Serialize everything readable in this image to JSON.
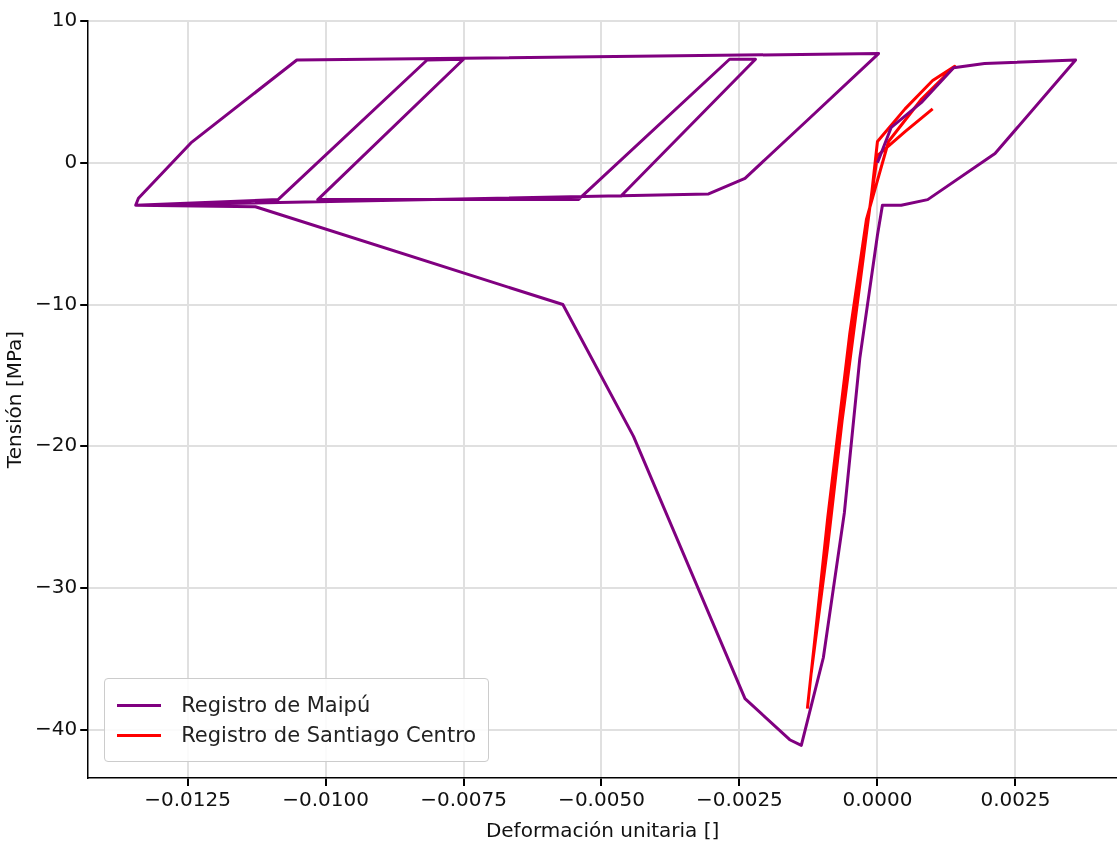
{
  "chart_data": {
    "type": "line",
    "xlabel": "Deformación unitaria []",
    "ylabel": "Tensión [MPa]",
    "xlim": [
      -0.0143,
      0.00434
    ],
    "ylim": [
      -43.4,
      10
    ],
    "xticks": [
      {
        "value": -0.0125,
        "label": "−0.0125"
      },
      {
        "value": -0.01,
        "label": "−0.0100"
      },
      {
        "value": -0.0075,
        "label": "−0.0075"
      },
      {
        "value": -0.005,
        "label": "−0.0050"
      },
      {
        "value": -0.0025,
        "label": "−0.0025"
      },
      {
        "value": 0,
        "label": "0.0000"
      },
      {
        "value": 0.0025,
        "label": "0.0025"
      }
    ],
    "yticks": [
      {
        "value": -40,
        "label": "−40"
      },
      {
        "value": -30,
        "label": "−30"
      },
      {
        "value": -20,
        "label": "−20"
      },
      {
        "value": -10,
        "label": "−10"
      },
      0,
      10
    ],
    "grid": true,
    "legend": "bottom left",
    "marker": "none",
    "series": [
      {
        "name": "Registro de Maipú",
        "color": "#800080",
        "x": [
          0,
          0.00025,
          0.00081,
          0.00138,
          0.00194,
          0.00359,
          0.00213,
          0.00091,
          0.00043,
          9e-05,
          0,
          -0.00032,
          -0.0006,
          -0.00098,
          -0.00138,
          -0.00159,
          -0.0024,
          -0.00442,
          -0.0057,
          -0.01127,
          -0.01344,
          -0.01339,
          -0.01244,
          -0.01052,
          2e-05,
          -0.00127,
          -0.0024,
          -0.00306,
          -0.01344,
          -0.01086,
          -0.00816,
          -0.0075,
          -0.01014,
          -0.00542,
          -0.00268,
          -0.00221,
          -0.00466
        ],
        "values": [
          0,
          2.5,
          4.3,
          6.7,
          7.0,
          7.25,
          0.65,
          -2.6,
          -3.0,
          -3.0,
          -5.1,
          -13.8,
          -24.7,
          -34.9,
          -41.1,
          -40.7,
          -37.8,
          -19.3,
          -10.0,
          -3.1,
          -3.0,
          -2.5,
          1.4,
          7.25,
          7.7,
          3.0,
          -1.1,
          -2.2,
          -3.0,
          -2.6,
          7.25,
          7.3,
          -2.6,
          -2.6,
          7.3,
          7.3,
          -2.4
        ]
      },
      {
        "name": "Registro de Santiago Centro",
        "color": "#ff0000",
        "x": [
          -0.00127,
          -0.00098,
          -0.0006,
          -0.0003,
          -0.0001,
          0,
          0.0005,
          0.001,
          0.0014,
          0.0008,
          0.0002,
          -0.0002,
          -0.0005,
          -0.0009,
          -0.0012,
          -0.0009,
          -0.0004,
          0,
          0.0005,
          0.001
        ],
        "values": [
          -38.5,
          -28,
          -17,
          -8,
          -2,
          1.5,
          3.8,
          5.8,
          6.8,
          4.5,
          1.5,
          -4,
          -12,
          -25,
          -36,
          -27,
          -10,
          0.5,
          2.2,
          3.8
        ]
      }
    ]
  }
}
